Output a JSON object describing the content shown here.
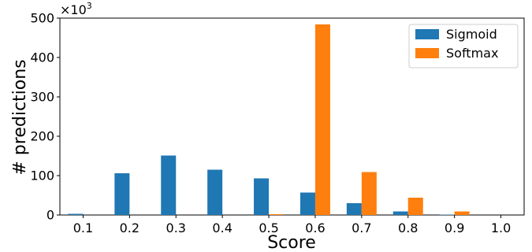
{
  "chart_data": {
    "type": "bar",
    "xlabel": "Score",
    "ylabel": "# predictions",
    "y_multiplier_base": "×10",
    "y_multiplier_exp": "3",
    "categories": [
      "0.1",
      "0.2",
      "0.3",
      "0.4",
      "0.5",
      "0.6",
      "0.7",
      "0.8",
      "0.9",
      "1.0"
    ],
    "series": [
      {
        "name": "Sigmoid",
        "color": "#1f77b4",
        "values": [
          3,
          106,
          151,
          115,
          93,
          57,
          30,
          9,
          1,
          0
        ]
      },
      {
        "name": "Softmax",
        "color": "#ff7f0e",
        "values": [
          0,
          0,
          0,
          0,
          2,
          484,
          109,
          44,
          9,
          0
        ]
      }
    ],
    "ylim": [
      0,
      500
    ],
    "yticks": [
      0,
      100,
      200,
      300,
      400,
      500
    ],
    "grid": false,
    "legend": "top-right"
  }
}
